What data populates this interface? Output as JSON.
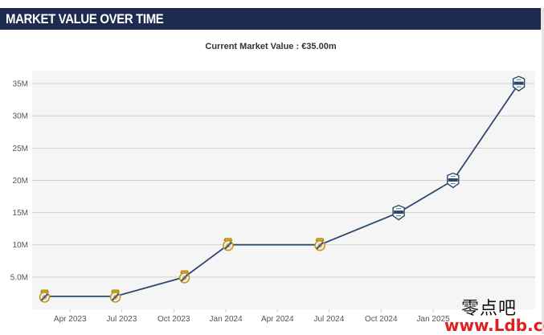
{
  "header": {
    "title": "MARKET VALUE OVER TIME"
  },
  "colors": {
    "header_bg": "#1d2b4f",
    "line": "#2e4a6b",
    "plot_bg": "#f5f5f5",
    "grid": "#cfcfcf"
  },
  "chart_data": {
    "type": "line",
    "title": "Current Market Value : €35.00m",
    "xlabel": "",
    "ylabel": "",
    "x_ticks": [
      "Apr 2023",
      "Jul 2023",
      "Oct 2023",
      "Jan 2024",
      "Apr 2024",
      "Jul 2024",
      "Oct 2024",
      "Jan 2025"
    ],
    "y_ticks": [
      "5.0M",
      "10M",
      "15M",
      "20M",
      "25M",
      "30M",
      "35M"
    ],
    "ylim": [
      0,
      37
    ],
    "grid": true,
    "series": [
      {
        "values_unit": "EUR millions",
        "points": [
          {
            "date": "2023-02-15",
            "value": 2,
            "club_icon": "real-madrid-crest-icon"
          },
          {
            "date": "2023-06-20",
            "value": 2,
            "club_icon": "real-madrid-crest-icon"
          },
          {
            "date": "2023-10-20",
            "value": 5,
            "club_icon": "real-madrid-crest-icon"
          },
          {
            "date": "2024-01-05",
            "value": 10,
            "club_icon": "real-madrid-crest-icon"
          },
          {
            "date": "2024-06-15",
            "value": 10,
            "club_icon": "real-madrid-crest-icon"
          },
          {
            "date": "2024-11-01",
            "value": 15,
            "club_icon": "club-crest-icon"
          },
          {
            "date": "2025-02-05",
            "value": 20,
            "club_icon": "club-crest-icon"
          },
          {
            "date": "2025-06-01",
            "value": 35,
            "club_icon": "club-crest-icon"
          }
        ]
      }
    ]
  },
  "watermark": {
    "line1": "零点吧",
    "line2": "www.Ldb.cc"
  }
}
